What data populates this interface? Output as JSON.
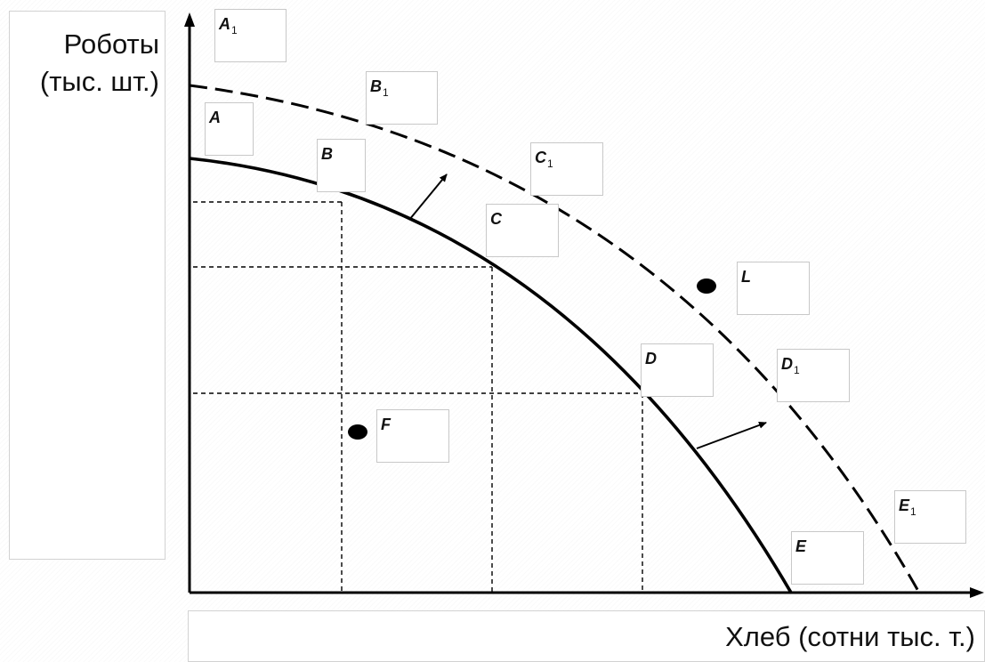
{
  "axes": {
    "y_label": "Роботы\n(тыс. шт.)",
    "x_label": "Хлеб (сотни тыс. т.)"
  },
  "points": [
    {
      "id": "A1",
      "letter": "A",
      "sub": "1"
    },
    {
      "id": "B1",
      "letter": "B",
      "sub": "1"
    },
    {
      "id": "A",
      "letter": "A",
      "sub": ""
    },
    {
      "id": "B",
      "letter": "B",
      "sub": ""
    },
    {
      "id": "C1",
      "letter": "C",
      "sub": "1"
    },
    {
      "id": "C",
      "letter": "C",
      "sub": ""
    },
    {
      "id": "L",
      "letter": "L",
      "sub": ""
    },
    {
      "id": "D",
      "letter": "D",
      "sub": ""
    },
    {
      "id": "D1",
      "letter": "D",
      "sub": "1"
    },
    {
      "id": "F",
      "letter": "F",
      "sub": ""
    },
    {
      "id": "E1",
      "letter": "E",
      "sub": "1"
    },
    {
      "id": "E",
      "letter": "E",
      "sub": ""
    }
  ],
  "curves": {
    "original": "solid",
    "shifted": "dashed"
  },
  "colors": {
    "line": "#000000",
    "box_border": "#c8c8c8"
  }
}
